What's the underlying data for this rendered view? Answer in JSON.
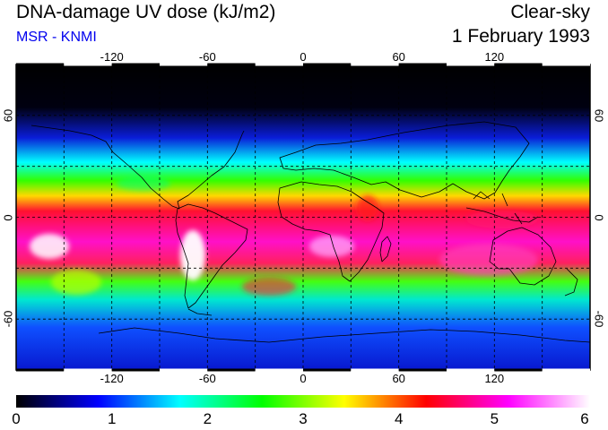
{
  "header": {
    "title": "DNA-damage UV dose (kJ/m2)",
    "subtitle": "MSR - KNMI",
    "condition": "Clear-sky",
    "date": "1 February 1993"
  },
  "map": {
    "projection": "equirectangular",
    "lon_range": [
      -180,
      180
    ],
    "lat_range": [
      -90,
      90
    ],
    "lon_ticks": [
      "-120",
      "-60",
      "0",
      "60",
      "120"
    ],
    "lat_ticks": [
      "60",
      "0",
      "-60"
    ],
    "grid": "dashed 30-degree graticule",
    "coastlines": true
  },
  "colorbar": {
    "min": 0,
    "max": 6,
    "unit": "kJ/m2",
    "labels": [
      "0",
      "1",
      "2",
      "3",
      "4",
      "5",
      "6"
    ],
    "colors": [
      "#000000",
      "#0000ff",
      "#00ffff",
      "#00ff00",
      "#ffff00",
      "#ff0000",
      "#ff00ff",
      "#ffffff"
    ]
  }
}
